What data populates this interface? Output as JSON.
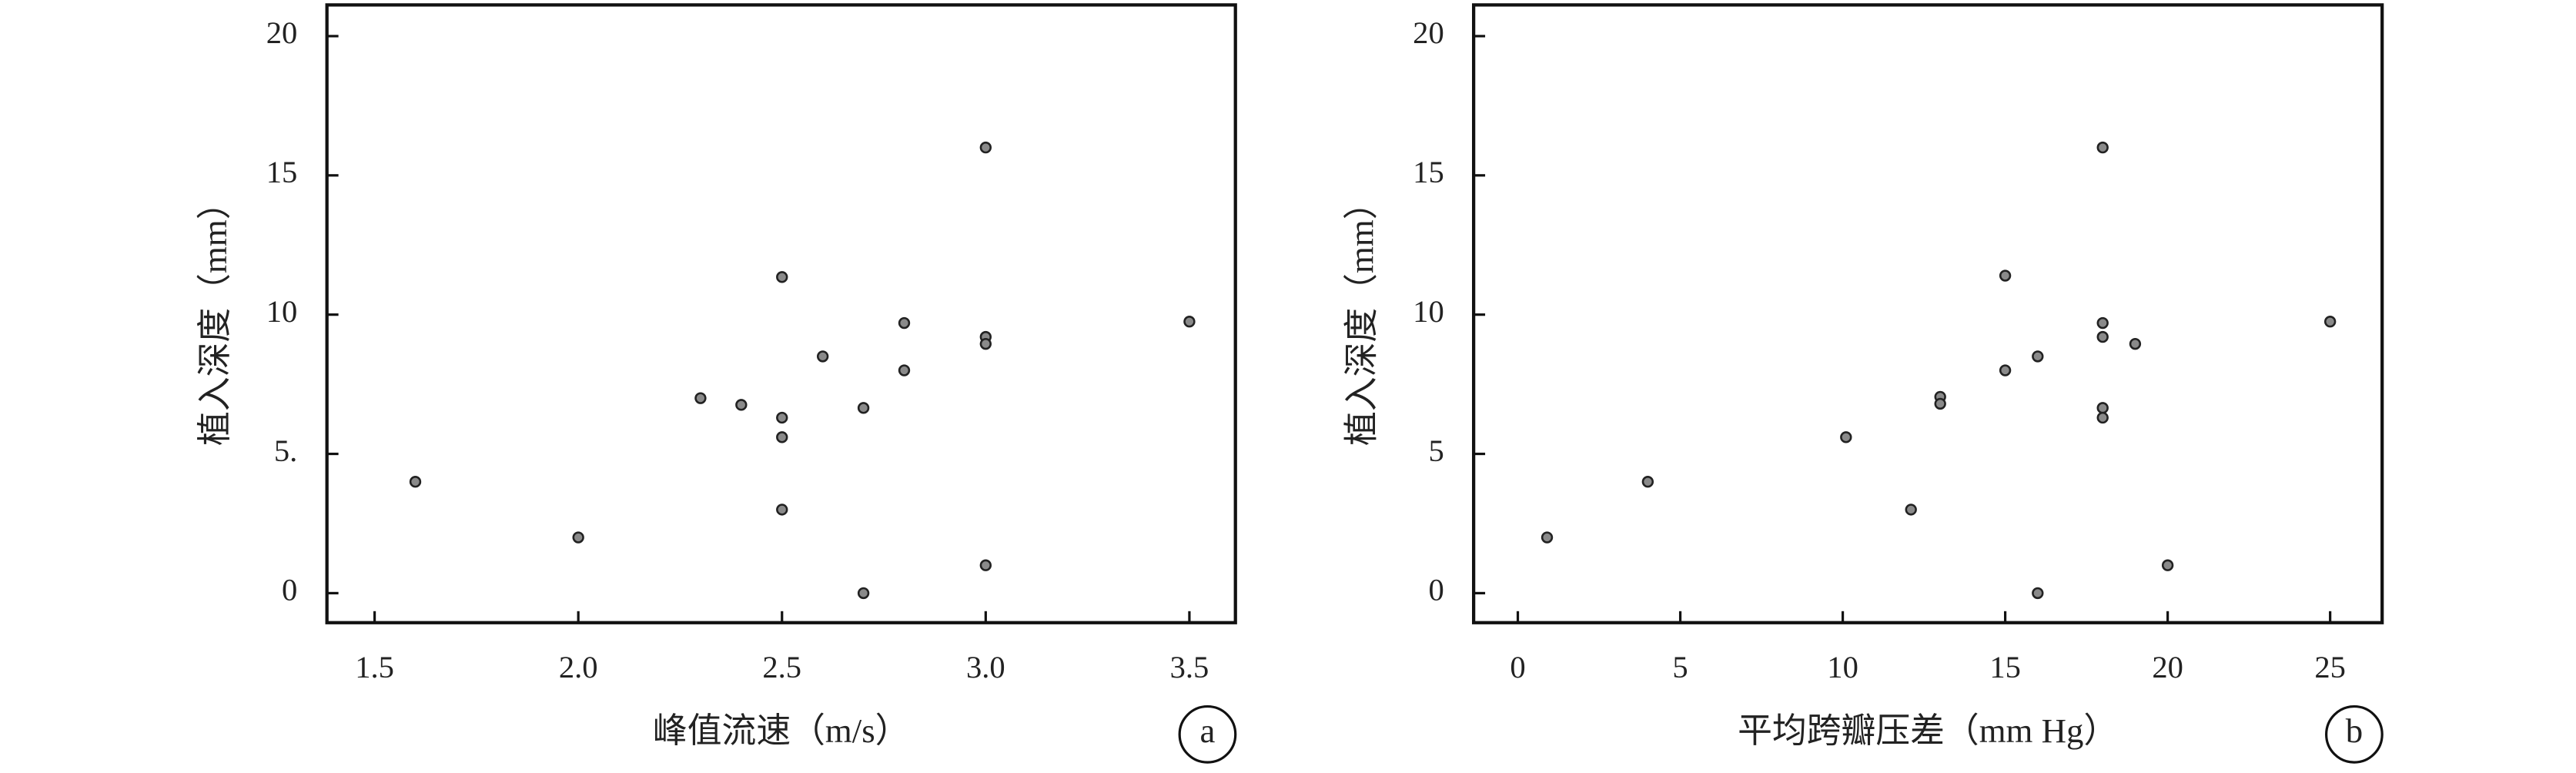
{
  "chart_data": [
    {
      "type": "scatter",
      "panel_label": "a",
      "xlabel": "峰值流速（m/s）",
      "ylabel": "植入深度（mm）",
      "x": [
        1.6,
        2.0,
        2.3,
        2.4,
        2.5,
        2.5,
        2.5,
        2.5,
        2.6,
        2.7,
        2.7,
        2.8,
        2.8,
        3.0,
        3.0,
        3.0,
        3.0,
        3.5
      ],
      "values": [
        4.0,
        2.0,
        7.0,
        6.76,
        11.35,
        6.3,
        5.6,
        3.0,
        8.5,
        6.65,
        0,
        9.7,
        8.0,
        16,
        9.2,
        8.95,
        1.0,
        9.75
      ],
      "color": "#8a8a8a",
      "xlim": [
        1.383,
        3.613
      ],
      "xticks": [
        {
          "value": 1.5,
          "label": "1.5"
        },
        {
          "value": 2,
          "label": "2.0"
        },
        {
          "value": 2.5,
          "label": "2.5"
        },
        {
          "value": 3,
          "label": "3.0"
        },
        {
          "value": 3.5,
          "label": "3.5"
        }
      ],
      "ylim": [
        -1.06,
        21.12
      ],
      "yticks": [
        0,
        {
          "value": 5,
          "label": "5."
        },
        10,
        15,
        20
      ]
    },
    {
      "type": "scatter",
      "panel_label": "b",
      "xlabel": "平均跨瓣压差（mm Hg）",
      "ylabel": "植入深度（mm）",
      "x": [
        0.9,
        4.0,
        10.1,
        12.1,
        13,
        13,
        15,
        15,
        16,
        16,
        18,
        18,
        18,
        18,
        18,
        19,
        20,
        25
      ],
      "values": [
        2.0,
        4.0,
        5.6,
        3.0,
        7.05,
        6.8,
        11.4,
        8.0,
        8.5,
        0,
        16,
        9.7,
        9.2,
        6.65,
        6.3,
        8.95,
        1.0,
        9.75
      ],
      "color": "#8a8a8a",
      "xlim": [
        -1.36,
        26.6
      ],
      "xticks": [
        0,
        5,
        10,
        15,
        20,
        25
      ],
      "ylim": [
        -1.06,
        21.12
      ],
      "yticks": [
        0,
        5,
        10,
        15,
        20
      ]
    }
  ]
}
